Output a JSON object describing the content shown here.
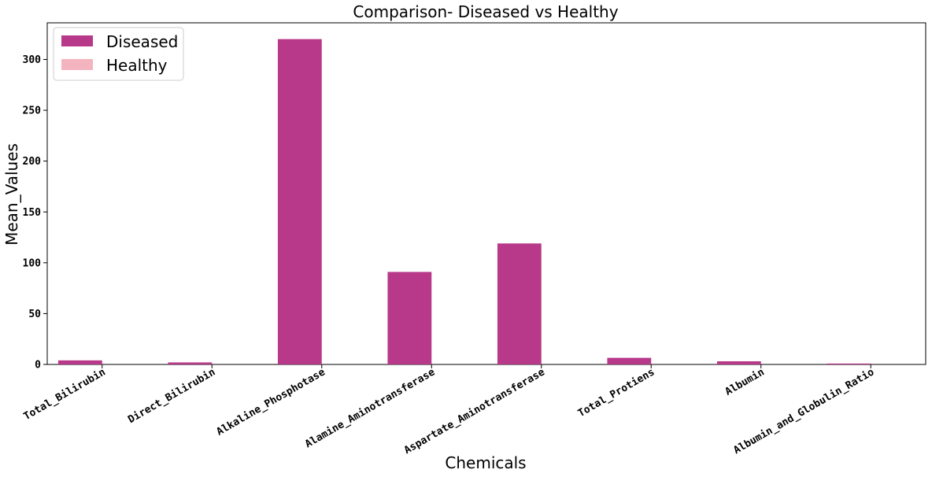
{
  "chart_data": {
    "type": "bar",
    "title": "Comparison- Diseased vs Healthy",
    "xlabel": "Chemicals",
    "ylabel": "Mean_Values",
    "ylim": [
      0,
      336
    ],
    "yticks": [
      0,
      50,
      100,
      150,
      200,
      250,
      300
    ],
    "xtick_rotation_deg": -30,
    "grid": false,
    "legend_position": "top-left",
    "categories": [
      "Total_Bilirubin",
      "Direct_Bilirubin",
      "Alkaline_Phosphotase",
      "Alamine_Aminotransferase",
      "Aspartate_Aminotransferase",
      "Total_Protiens",
      "Albumin",
      "Albumin_and_Globulin_Ratio"
    ],
    "series": [
      {
        "name": "Diseased",
        "color": "#b8388a",
        "values": [
          4,
          2,
          320,
          91,
          119,
          6.5,
          3.1,
          0.9
        ]
      },
      {
        "name": "Healthy",
        "color": "#f4b4bf",
        "values": [
          0,
          0,
          0,
          0,
          0,
          0,
          0,
          0
        ]
      }
    ]
  }
}
